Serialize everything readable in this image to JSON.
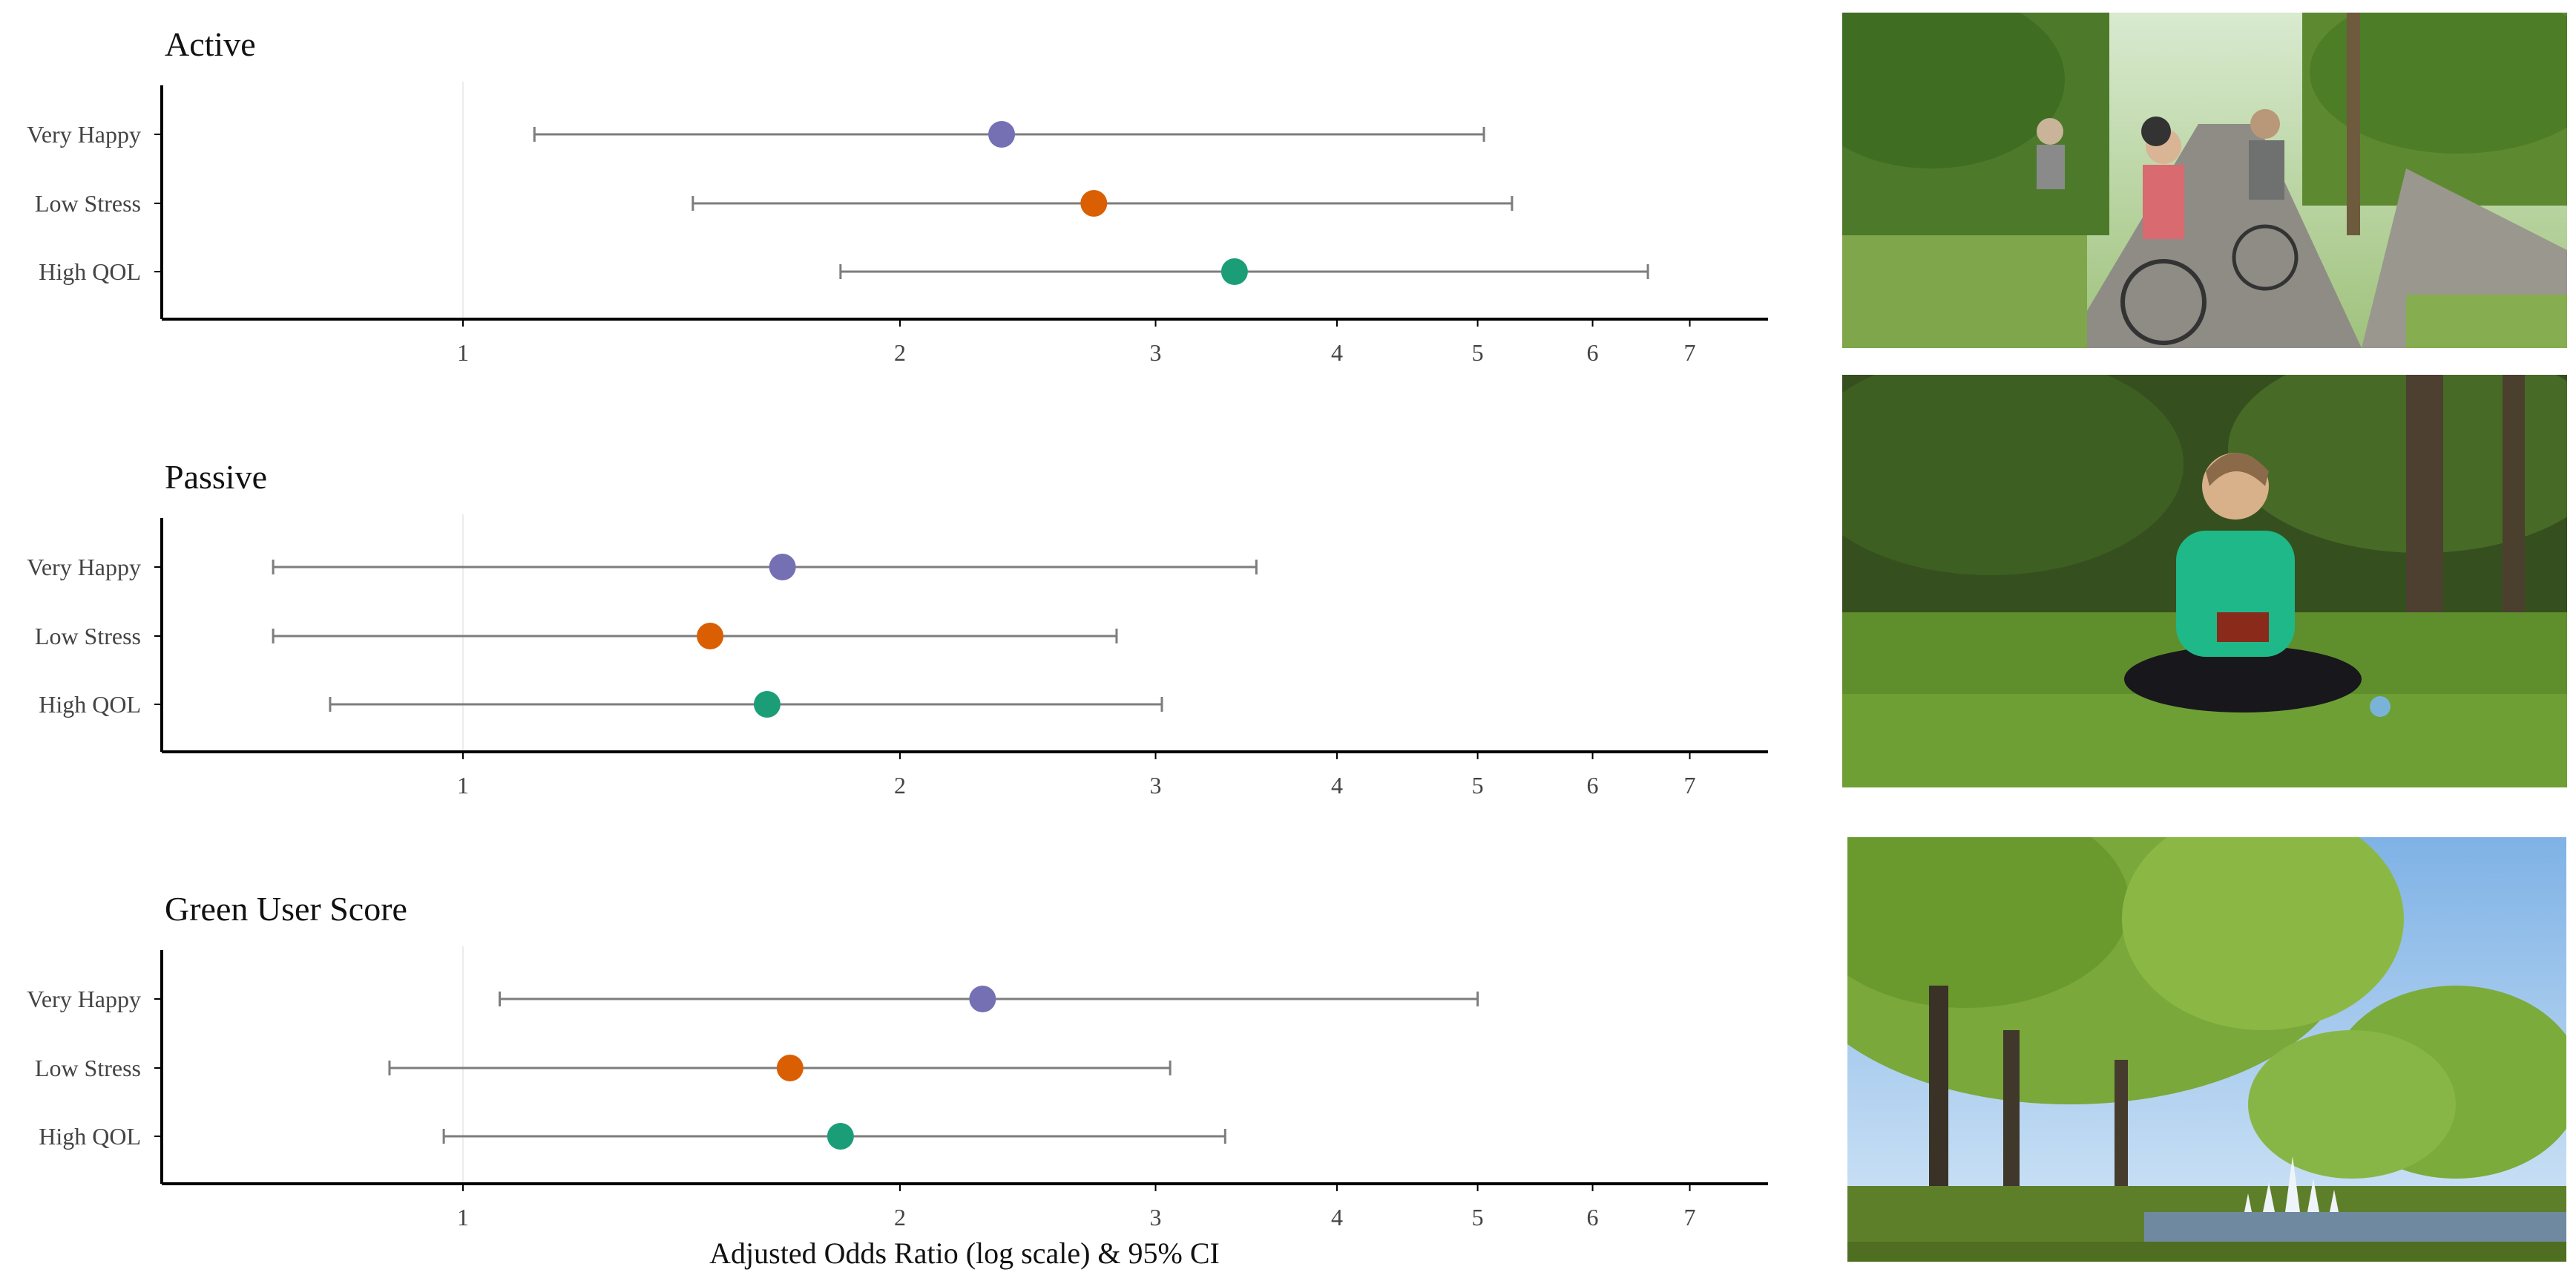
{
  "chart_data": {
    "type": "forest",
    "xlabel": "Adjusted Odds Ratio (log scale) & 95% CI",
    "xscale": "log",
    "xlim": [
      0.55,
      8.2
    ],
    "xticks": [
      1,
      2,
      3,
      4,
      5,
      6,
      7
    ],
    "reference_line": 1,
    "colors": {
      "Very Happy": "#7570b3",
      "Low Stress": "#d95f02",
      "High QOL": "#1b9e77"
    },
    "panels": [
      {
        "title": "Active",
        "rows": [
          {
            "label": "Very Happy",
            "estimate": 2.35,
            "lower": 1.12,
            "upper": 5.05
          },
          {
            "label": "Low Stress",
            "estimate": 2.72,
            "lower": 1.44,
            "upper": 5.28
          },
          {
            "label": "High QOL",
            "estimate": 3.4,
            "lower": 1.82,
            "upper": 6.55
          }
        ]
      },
      {
        "title": "Passive",
        "rows": [
          {
            "label": "Very Happy",
            "estimate": 1.66,
            "lower": 0.74,
            "upper": 3.52
          },
          {
            "label": "Low Stress",
            "estimate": 1.48,
            "lower": 0.74,
            "upper": 2.82
          },
          {
            "label": "High QOL",
            "estimate": 1.62,
            "lower": 0.81,
            "upper": 3.03
          }
        ]
      },
      {
        "title": "Green User Score",
        "rows": [
          {
            "label": "Very Happy",
            "estimate": 2.28,
            "lower": 1.06,
            "upper": 5.0
          },
          {
            "label": "Low Stress",
            "estimate": 1.68,
            "lower": 0.89,
            "upper": 3.07
          },
          {
            "label": "High QOL",
            "estimate": 1.82,
            "lower": 0.97,
            "upper": 3.35
          }
        ]
      }
    ]
  },
  "photos": [
    {
      "panel": "Active",
      "subject": "people-cycling-on-park-path"
    },
    {
      "panel": "Passive",
      "subject": "woman-reading-on-grass"
    },
    {
      "panel": "Green User Score",
      "subject": "park-trees-and-fountain"
    }
  ]
}
